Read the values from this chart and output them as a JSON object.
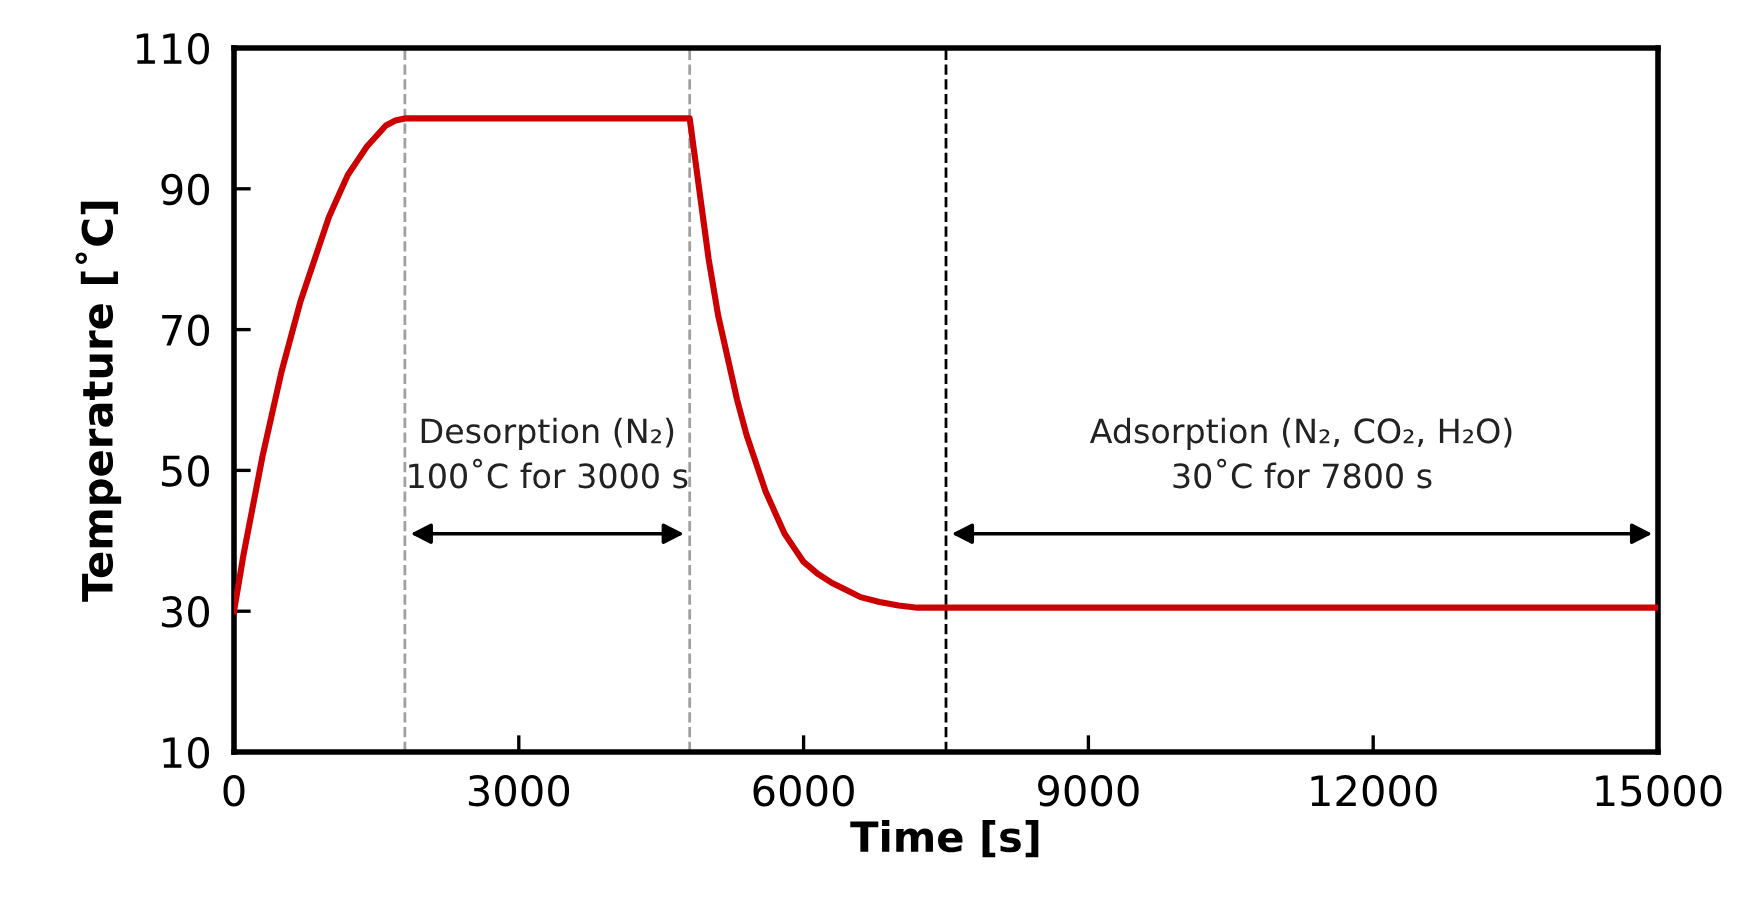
{
  "chart_data": {
    "type": "line",
    "xlabel": "Time [s]",
    "ylabel": "Temperature [˚C]",
    "xlim": [
      0,
      15000
    ],
    "xticks": [
      0,
      3000,
      6000,
      9000,
      12000,
      15000
    ],
    "ylim": [
      10,
      110
    ],
    "yticks": [
      10,
      30,
      50,
      70,
      90,
      110
    ],
    "grid": false,
    "marker": "none",
    "line_style": "solid",
    "series": [
      {
        "color": "#cc0000",
        "x": [
          0,
          100,
          200,
          300,
          400,
          500,
          600,
          700,
          800,
          900,
          1000,
          1100,
          1200,
          1300,
          1400,
          1500,
          1600,
          1700,
          1800,
          4800,
          4850,
          4900,
          4950,
          5000,
          5100,
          5200,
          5300,
          5400,
          5500,
          5600,
          5700,
          5800,
          5900,
          6000,
          6150,
          6300,
          6450,
          6600,
          6800,
          7000,
          7200,
          15000
        ],
        "values": [
          30,
          38,
          45,
          52,
          58,
          64,
          69,
          74,
          78,
          82,
          86,
          89,
          92,
          94,
          96,
          97.5,
          99,
          99.7,
          100,
          100,
          95,
          90,
          85,
          80,
          72,
          66,
          60,
          55,
          51,
          47,
          44,
          41,
          39,
          37,
          35.3,
          34,
          33,
          32,
          31.3,
          30.8,
          30.5,
          30.5
        ]
      }
    ],
    "ref_lines": [
      {
        "axis": "x",
        "value": 1800,
        "color": "#a0a0a0",
        "line_style": "dashed"
      },
      {
        "axis": "x",
        "value": 4800,
        "color": "#a0a0a0",
        "line_style": "dashed"
      },
      {
        "axis": "x",
        "value": 7500,
        "color": "#000000",
        "line_style": "dashed"
      }
    ],
    "annotations": [
      "Desorption (N₂)\n100˚C for 3000 s",
      "Adsorption (N₂, CO₂, H₂O)\n30˚C for 7800 s"
    ]
  }
}
